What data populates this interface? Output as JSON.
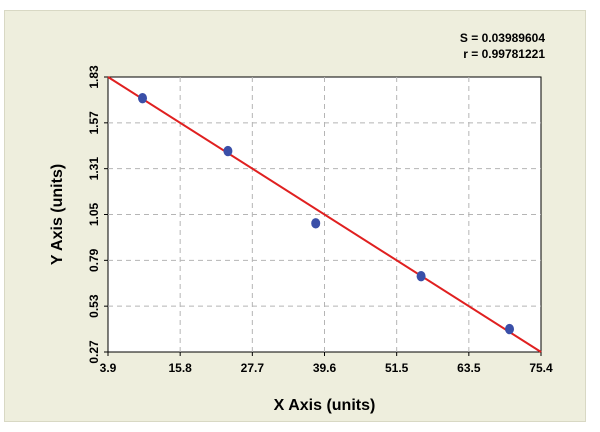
{
  "stats": {
    "s_label": "S = 0.03989604",
    "r_label": "r = 0.99781221"
  },
  "chart_data": {
    "type": "scatter",
    "title": "",
    "xlabel": "X Axis (units)",
    "ylabel": "Y Axis (units)",
    "xlim": [
      3.9,
      75.4
    ],
    "ylim": [
      0.27,
      1.83
    ],
    "x_ticks": [
      "3.9",
      "15.8",
      "27.7",
      "39.6",
      "51.5",
      "63.5",
      "75.4"
    ],
    "y_ticks": [
      "0.27",
      "0.53",
      "0.79",
      "1.05",
      "1.31",
      "1.57",
      "1.83"
    ],
    "grid": true,
    "colors": {
      "points": "#3a4fa8",
      "fit_line": "#e02020",
      "grid": "#b5b5b5",
      "plot_bg": "#ffffff",
      "frame_bg": "#eeeedd"
    },
    "series": [
      {
        "x": [
          9.6,
          23.7,
          38.2,
          55.6,
          70.2
        ],
        "y": [
          1.71,
          1.41,
          1.0,
          0.7,
          0.4
        ]
      }
    ],
    "fit_line": {
      "x": [
        3.9,
        75.4
      ],
      "y": [
        1.83,
        0.27
      ]
    }
  }
}
